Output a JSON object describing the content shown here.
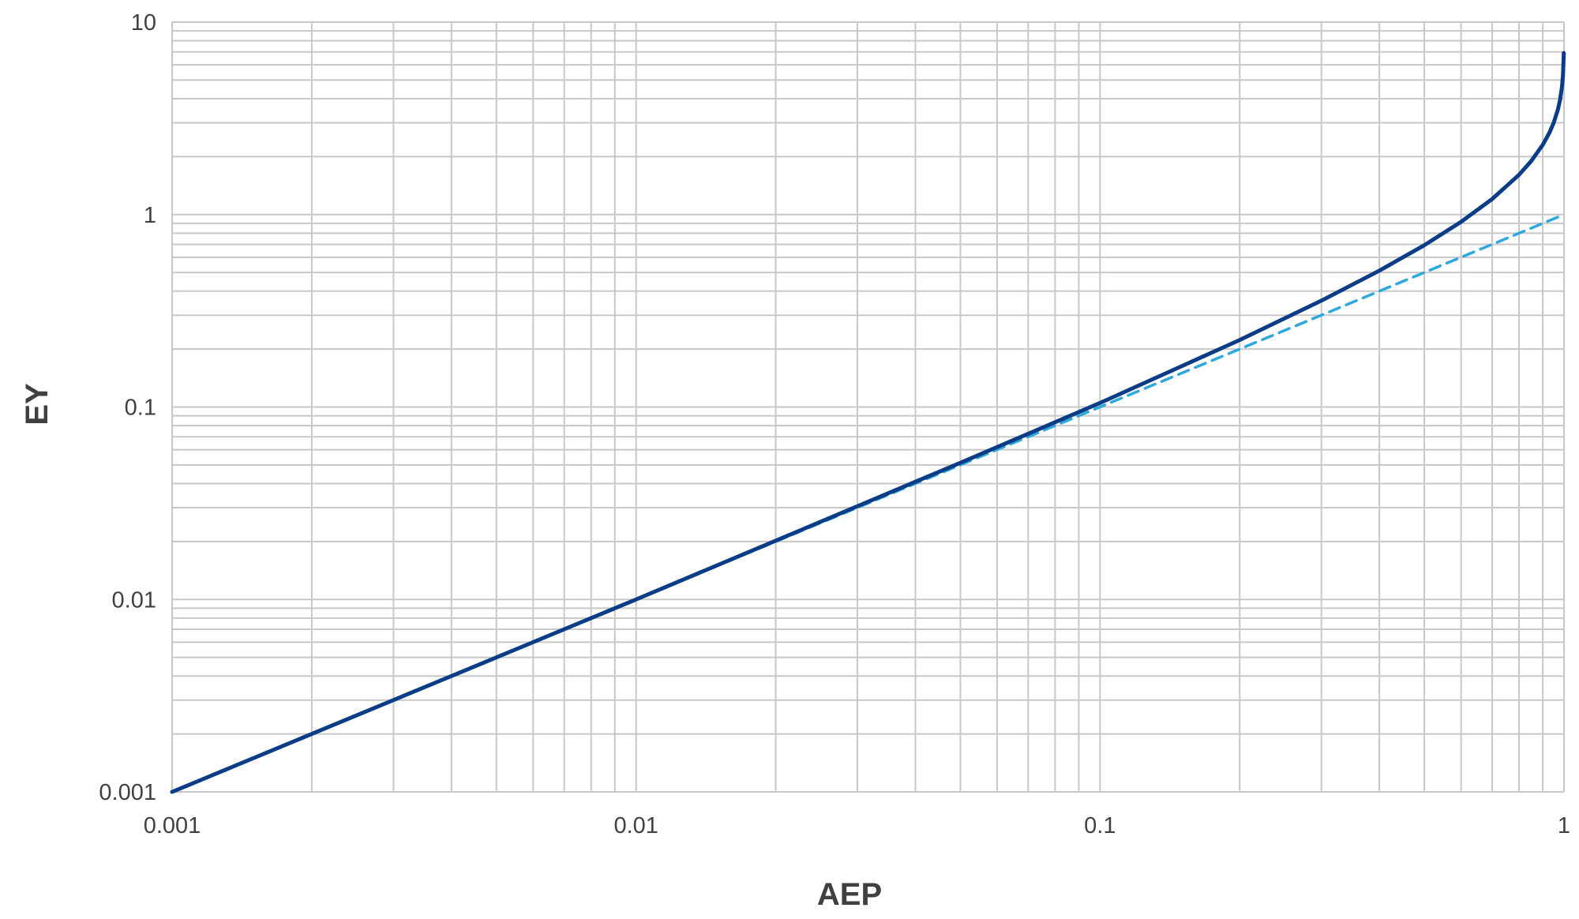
{
  "chart_data": {
    "type": "line",
    "title": "",
    "xlabel": "AEP",
    "ylabel": "EY",
    "x_scale": "log",
    "y_scale": "log",
    "xlim": [
      0.001,
      1
    ],
    "ylim": [
      0.001,
      10
    ],
    "grid": true,
    "legend": "none",
    "x_ticks": [
      "0.001",
      "0.01",
      "0.1",
      "1"
    ],
    "y_ticks": [
      "0.001",
      "0.01",
      "0.1",
      "1",
      "10"
    ],
    "series": [
      {
        "style": "solid",
        "color": "#0b3c86",
        "x": [
          0.001,
          0.002,
          0.005,
          0.01,
          0.02,
          0.05,
          0.07,
          0.1,
          0.15,
          0.2,
          0.3,
          0.4,
          0.5,
          0.6,
          0.7,
          0.8,
          0.85,
          0.9,
          0.93,
          0.95,
          0.97,
          0.98,
          0.99,
          0.995,
          0.999
        ],
        "y": [
          0.001,
          0.002,
          0.005,
          0.01,
          0.0202,
          0.0513,
          0.0726,
          0.105,
          0.163,
          0.223,
          0.357,
          0.511,
          0.693,
          0.916,
          1.204,
          1.609,
          1.897,
          2.303,
          2.659,
          2.996,
          3.507,
          3.912,
          4.605,
          5.298,
          6.908
        ]
      },
      {
        "style": "dashed",
        "color": "#2ea8dd",
        "x": [
          0.001,
          1
        ],
        "y": [
          0.001,
          1
        ]
      }
    ]
  }
}
